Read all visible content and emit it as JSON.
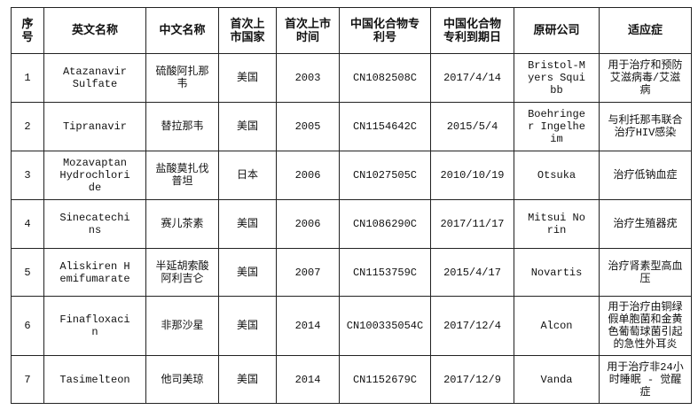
{
  "headers": [
    "序号",
    "英文名称",
    "中文名称",
    "首次上市国家",
    "首次上市时间",
    "中国化合物专利号",
    "中国化合物专利到期日",
    "原研公司",
    "适应症"
  ],
  "rows": [
    [
      "1",
      "Atazanavir Sulfate",
      "硫酸阿扎那韦",
      "美国",
      "2003",
      "CN1082508C",
      "2017/4/14",
      "Bristol-Myers Squibb",
      "用于治疗和预防艾滋病毒/艾滋病"
    ],
    [
      "2",
      "Tipranavir",
      "替拉那韦",
      "美国",
      "2005",
      "CN1154642C",
      "2015/5/4",
      "Boehringer Ingelheim",
      "与利托那韦联合治疗HIV感染"
    ],
    [
      "3",
      "Mozavaptan Hydrochloride",
      "盐酸莫扎伐普坦",
      "日本",
      "2006",
      "CN1027505C",
      "2010/10/19",
      "Otsuka",
      "治疗低钠血症"
    ],
    [
      "4",
      "Sinecatechins",
      "赛儿茶素",
      "美国",
      "2006",
      "CN1086290C",
      "2017/11/17",
      "Mitsui Norin",
      "治疗生殖器疣"
    ],
    [
      "5",
      "Aliskiren Hemifumarate",
      "半延胡索酸阿利吉仑",
      "美国",
      "2007",
      "CN1153759C",
      "2015/4/17",
      "Novartis",
      "治疗肾素型高血压"
    ],
    [
      "6",
      "Finafloxacin",
      "非那沙星",
      "美国",
      "2014",
      "CN100335054C",
      "2017/12/4",
      "Alcon",
      "用于治疗由铜绿假单胞菌和金黄色葡萄球菌引起的急性外耳炎"
    ],
    [
      "7",
      "Tasimelteon",
      "他司美琼",
      "美国",
      "2014",
      "CN1152679C",
      "2017/12/9",
      "Vanda",
      "用于治疗非24小时睡眠 - 觉醒症"
    ]
  ]
}
